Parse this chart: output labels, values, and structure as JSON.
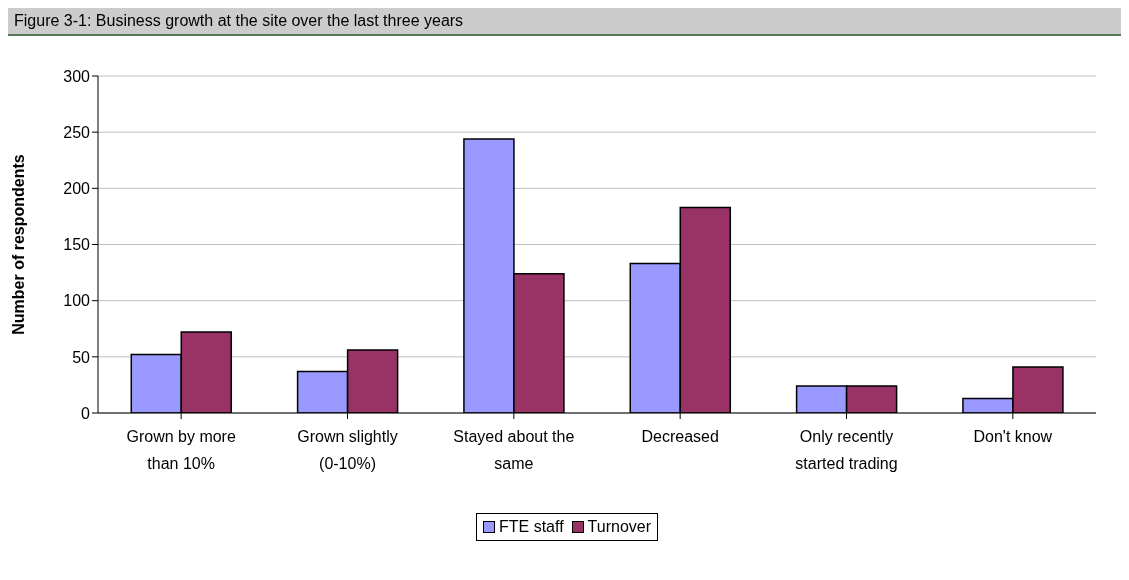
{
  "chart_data": {
    "type": "bar",
    "title": "Figure 3-1: Business growth at the site over the last three years",
    "ylabel": "Number of respondents",
    "categories": [
      "Grown by more than 10%",
      "Grown slightly (0-10%)",
      "Stayed about the same",
      "Decreased",
      "Only recently started trading",
      "Don't know"
    ],
    "series": [
      {
        "name": "FTE staff",
        "color": "#9999ff",
        "values": [
          52,
          37,
          244,
          133,
          24,
          13
        ]
      },
      {
        "name": "Turnover",
        "color": "#993366",
        "values": [
          72,
          56,
          124,
          183,
          24,
          41
        ]
      }
    ],
    "ylim": [
      0,
      300
    ],
    "yticks": [
      0,
      50,
      100,
      150,
      200,
      250,
      300
    ],
    "grid": "y",
    "legend": "bottom"
  }
}
